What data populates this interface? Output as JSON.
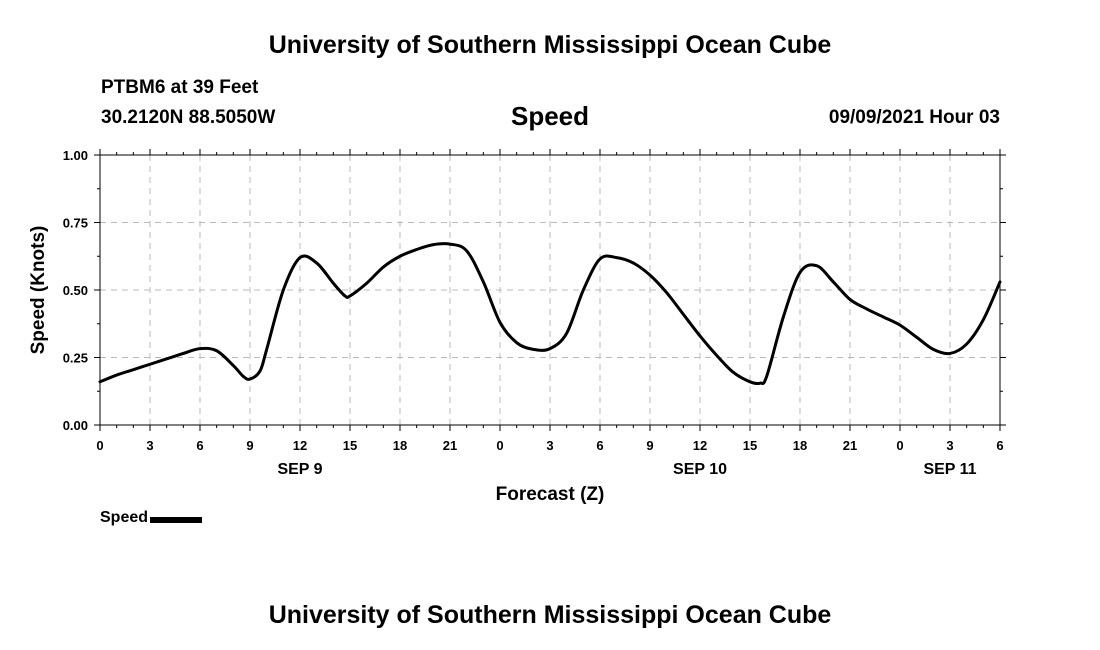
{
  "header": {
    "title": "University of Southern Mississippi Ocean Cube",
    "station": "PTBM6 at 39 Feet",
    "coordinates": "30.2120N  88.5050W",
    "variable": "Speed",
    "timestamp": "09/09/2021 Hour 03"
  },
  "footer": {
    "title": "University of Southern Mississippi Ocean Cube"
  },
  "legend": {
    "label": "Speed"
  },
  "colors": {
    "line": "#000000",
    "grid": "#bbbbbb",
    "axis": "#000000",
    "background": "#ffffff"
  },
  "chart_data": {
    "type": "line",
    "title": "Speed",
    "xlabel": "Forecast (Z)",
    "ylabel": "Speed (Knots)",
    "xlim": [
      0,
      54
    ],
    "ylim": [
      0,
      1
    ],
    "yticks": [
      0,
      0.25,
      0.5,
      0.75,
      1
    ],
    "ytick_labels": [
      "0.00",
      "0.25",
      "0.50",
      "0.75",
      "1.00"
    ],
    "xticks": [
      0,
      3,
      6,
      9,
      12,
      15,
      18,
      21,
      24,
      27,
      30,
      33,
      36,
      39,
      42,
      45,
      48,
      51,
      54
    ],
    "xtick_labels": [
      "0",
      "3",
      "6",
      "9",
      "12",
      "15",
      "18",
      "21",
      "0",
      "3",
      "6",
      "9",
      "12",
      "15",
      "18",
      "21",
      "0",
      "3",
      "6"
    ],
    "date_labels": [
      {
        "x": 12,
        "label": "SEP 9"
      },
      {
        "x": 36,
        "label": "SEP 10"
      },
      {
        "x": 51,
        "label": "SEP 11"
      }
    ],
    "grid": true,
    "legend_position": "bottom-left",
    "series": [
      {
        "name": "Speed",
        "x": [
          0,
          1,
          2,
          3,
          4,
          5,
          6,
          7,
          8,
          8.6,
          9,
          9.6,
          10,
          11,
          12,
          13,
          14,
          14.7,
          15,
          16,
          17,
          18,
          19,
          20,
          21,
          22,
          23,
          24,
          25,
          26,
          27,
          28,
          29,
          30,
          31,
          32,
          33,
          34,
          35,
          36,
          37,
          38,
          39,
          39.6,
          40,
          41,
          42,
          43,
          44,
          45,
          46,
          47,
          48,
          49,
          50,
          51,
          52,
          53,
          54
        ],
        "values": [
          0.16,
          0.185,
          0.205,
          0.225,
          0.245,
          0.265,
          0.283,
          0.275,
          0.22,
          0.18,
          0.17,
          0.2,
          0.28,
          0.5,
          0.62,
          0.6,
          0.525,
          0.478,
          0.478,
          0.525,
          0.585,
          0.625,
          0.65,
          0.668,
          0.67,
          0.645,
          0.53,
          0.38,
          0.305,
          0.28,
          0.283,
          0.34,
          0.5,
          0.615,
          0.62,
          0.6,
          0.555,
          0.49,
          0.41,
          0.33,
          0.258,
          0.195,
          0.16,
          0.155,
          0.18,
          0.4,
          0.565,
          0.59,
          0.53,
          0.465,
          0.43,
          0.4,
          0.37,
          0.325,
          0.28,
          0.265,
          0.3,
          0.39,
          0.53
        ]
      }
    ]
  }
}
